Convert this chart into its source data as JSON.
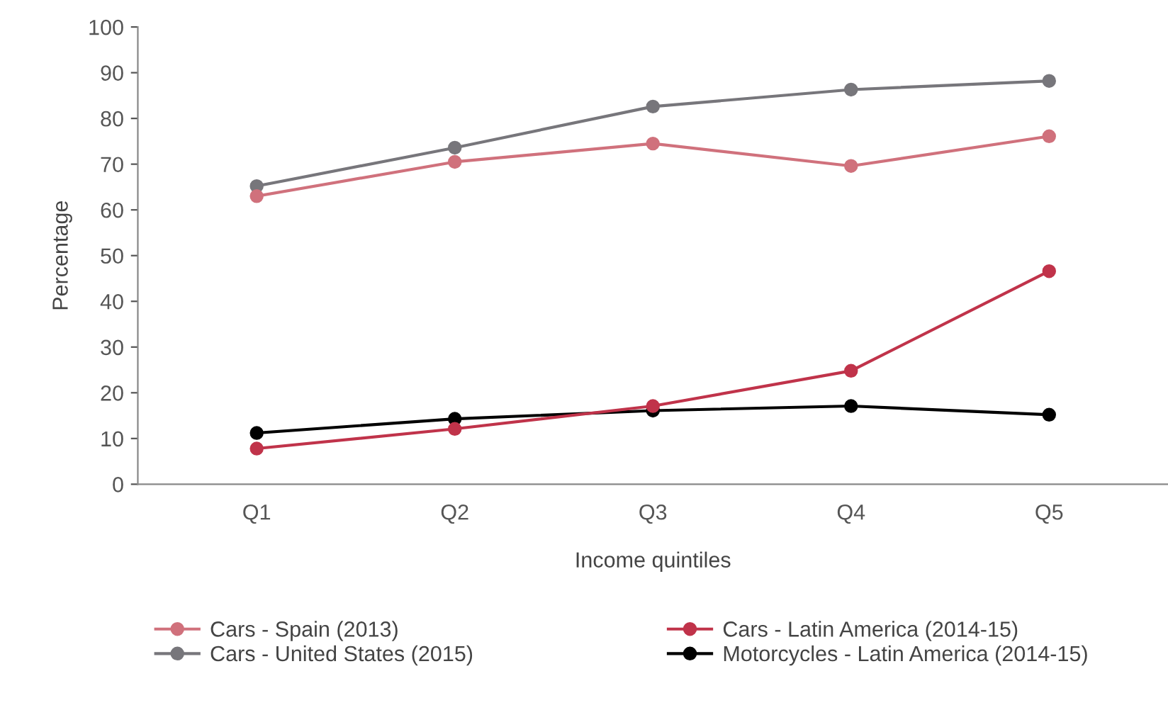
{
  "chart_data": {
    "type": "line",
    "xlabel": "Income quintiles",
    "ylabel": "Percentage",
    "categories": [
      "Q1",
      "Q2",
      "Q3",
      "Q4",
      "Q5"
    ],
    "series": [
      {
        "name": "Cars - Spain (2013)",
        "color": "#d0717c",
        "values": [
          63,
          70.5,
          74.5,
          69.6,
          76.1
        ]
      },
      {
        "name": "Cars - United States (2015)",
        "color": "#77767b",
        "values": [
          65.2,
          73.6,
          82.6,
          86.3,
          88.2
        ]
      },
      {
        "name": "Cars - Latin America (2014-15)",
        "color": "#c0334a",
        "values": [
          7.8,
          12.1,
          17.1,
          24.8,
          46.6
        ]
      },
      {
        "name": "Motorcycles - Latin America (2014-15)",
        "color": "#000000",
        "values": [
          11.2,
          14.3,
          16.1,
          17.1,
          15.2
        ]
      }
    ],
    "ylim": [
      0,
      100
    ],
    "yticks": [
      0,
      10,
      20,
      30,
      40,
      50,
      60,
      70,
      80,
      90,
      100
    ],
    "grid": false,
    "legend": "bottom",
    "marker": "circle",
    "line_style": "solid"
  }
}
